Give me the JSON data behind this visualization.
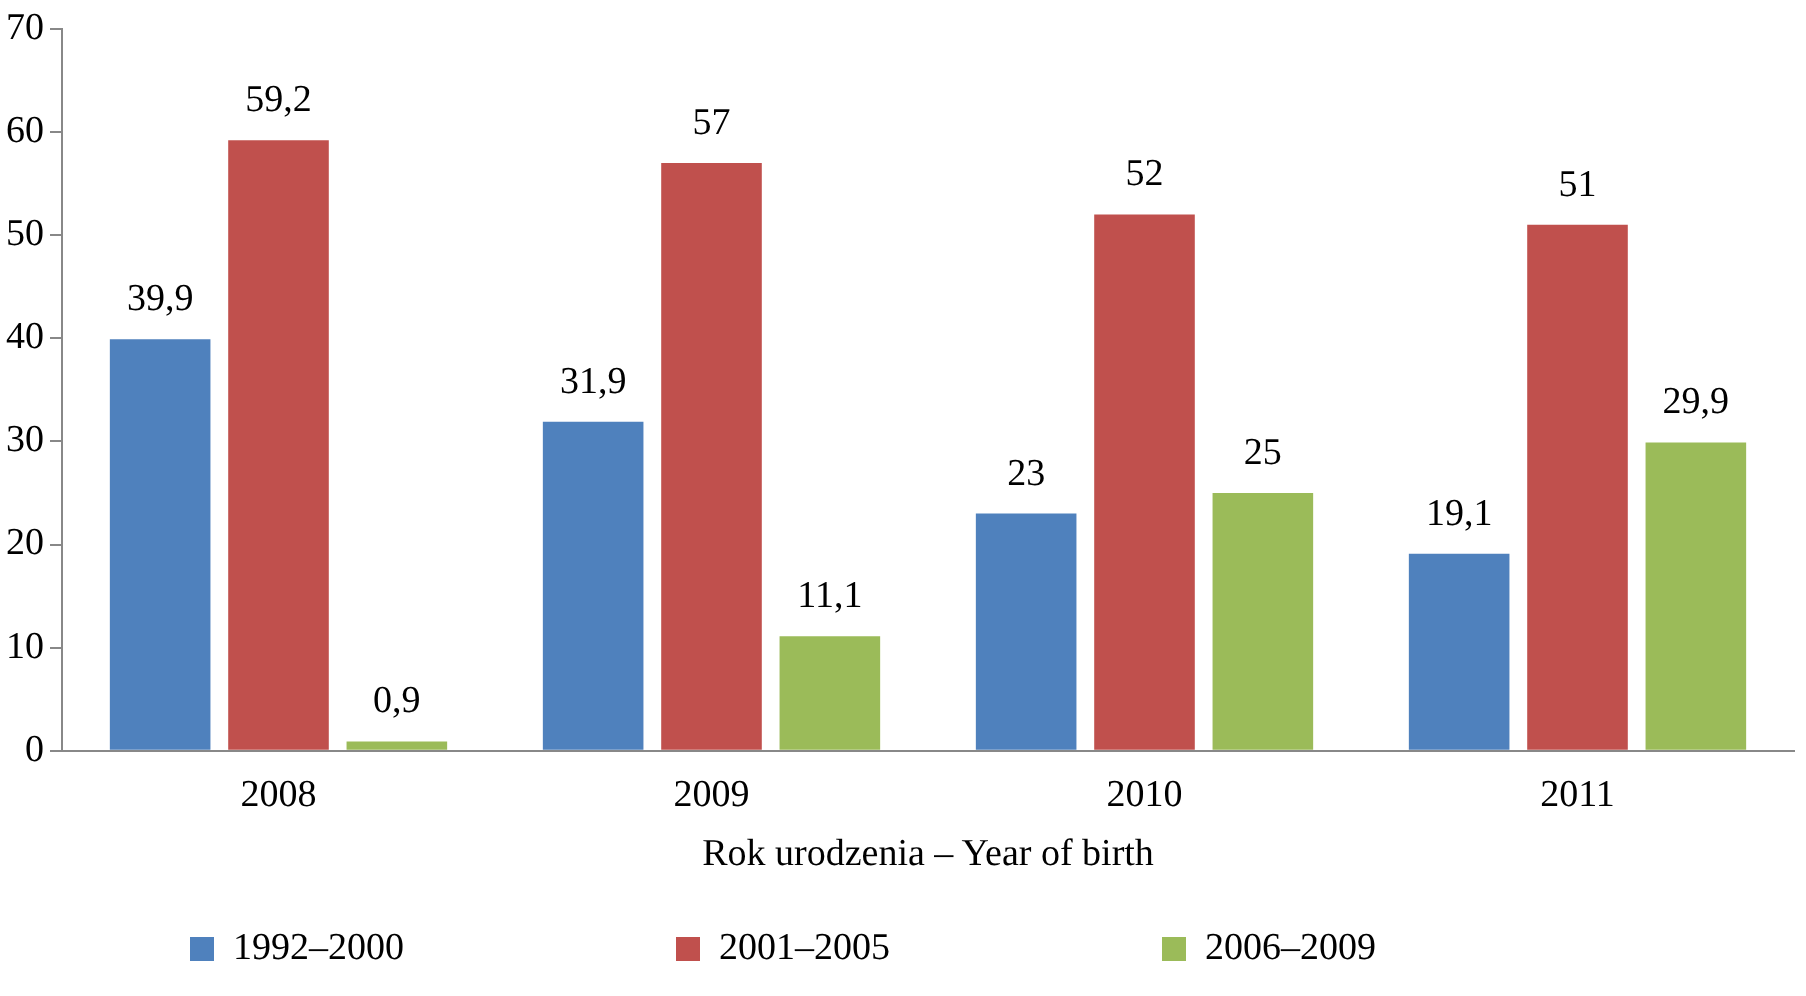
{
  "chart_data": {
    "type": "bar",
    "xlabel": "Rok urodzenia – Year of birth",
    "categories": [
      "2008",
      "2009",
      "2010",
      "2011"
    ],
    "series": [
      {
        "name": "1992–2000",
        "color": "#4f81bd",
        "values": [
          39.9,
          31.9,
          23,
          19.1
        ],
        "value_labels": [
          "39,9",
          "31,9",
          "23",
          "19,1"
        ]
      },
      {
        "name": "2001–2005",
        "color": "#c0504d",
        "values": [
          59.2,
          57,
          52,
          51
        ],
        "value_labels": [
          "59,2",
          "57",
          "52",
          "51"
        ]
      },
      {
        "name": "2006–2009",
        "color": "#9bbb59",
        "values": [
          0.9,
          11.1,
          25,
          29.9
        ],
        "value_labels": [
          "0,9",
          "11,1",
          "25",
          "29,9"
        ]
      }
    ],
    "ylim": [
      0,
      70
    ],
    "yticks": [
      0,
      10,
      20,
      30,
      40,
      50,
      60,
      70
    ],
    "grid": false,
    "legend": "bottom"
  }
}
